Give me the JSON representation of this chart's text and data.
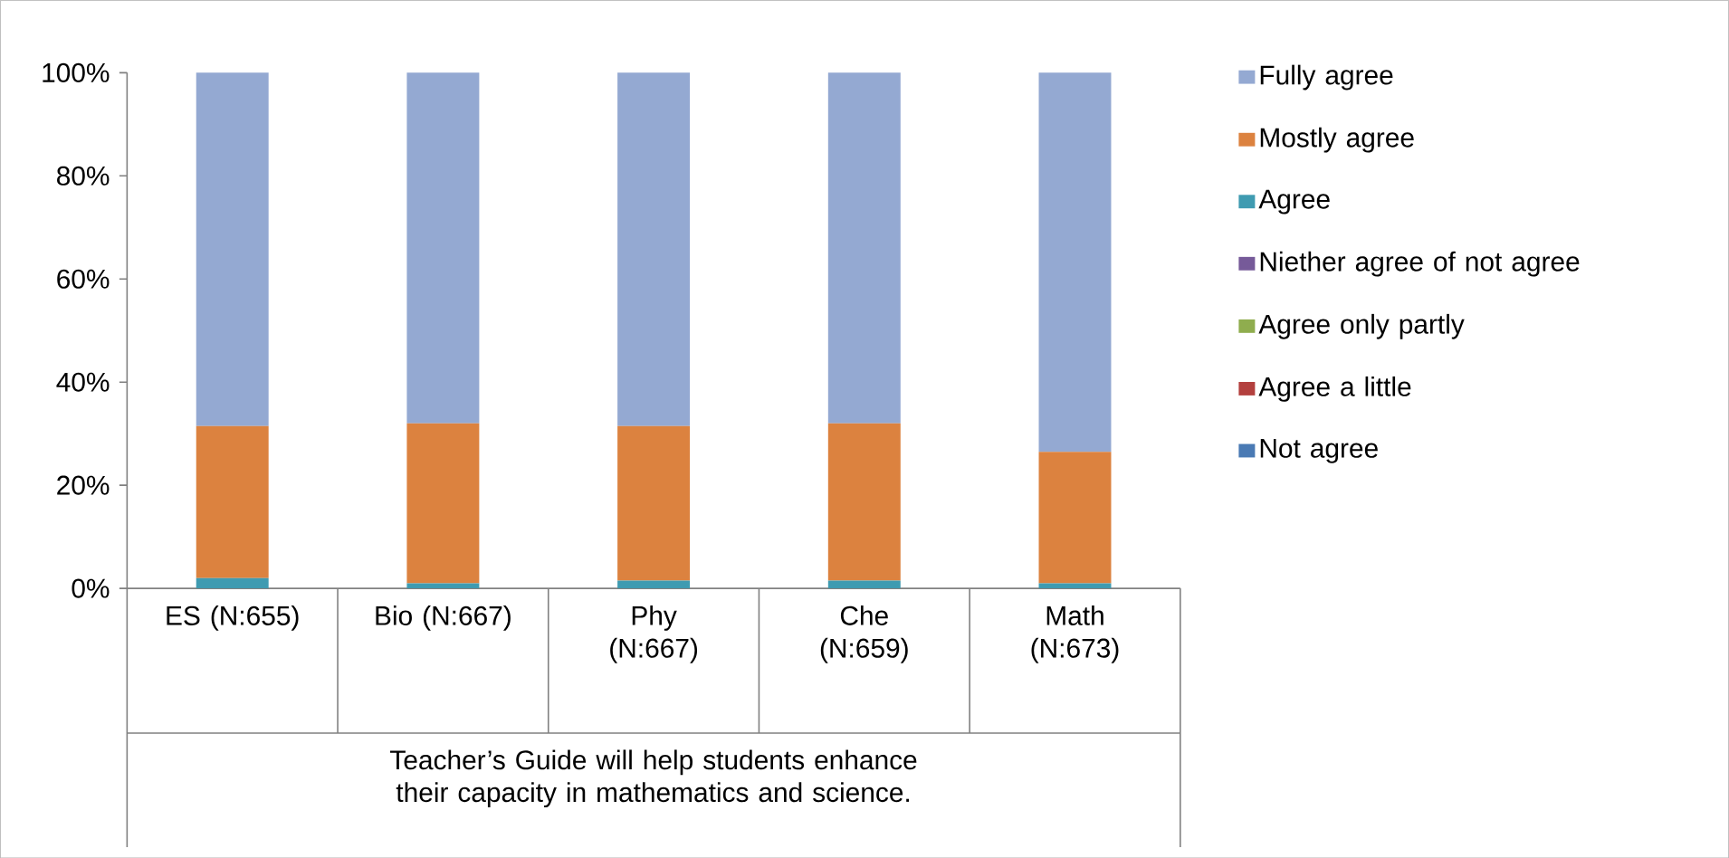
{
  "chart_data": {
    "type": "bar",
    "stacked": true,
    "categories": [
      "ES (N:655)",
      "Bio (N:667)",
      "Phy (N:667)",
      "Che (N:659)",
      "Math (N:673)"
    ],
    "xlabel": "Teacher’s Guide will help students enhance their capacity in mathematics and science.",
    "series": [
      {
        "name": "Not agree",
        "color": "#4a7ab4",
        "values": [
          0,
          0,
          0,
          0,
          0
        ]
      },
      {
        "name": "Agree a little",
        "color": "#b3403e",
        "values": [
          0,
          0,
          0,
          0,
          0
        ]
      },
      {
        "name": "Agree only partly",
        "color": "#8fad4e",
        "values": [
          0,
          0,
          0,
          0,
          0
        ]
      },
      {
        "name": "Niether agree of not agree",
        "color": "#765a99",
        "values": [
          0,
          0,
          0,
          0,
          0
        ]
      },
      {
        "name": "Agree",
        "color": "#3f9bb1",
        "values": [
          2,
          1,
          1.5,
          1.5,
          1
        ]
      },
      {
        "name": "Mostly agree",
        "color": "#dc823f",
        "values": [
          29.5,
          31,
          30,
          30.5,
          25.5
        ]
      },
      {
        "name": "Fully agree",
        "color": "#94a9d2",
        "values": [
          68.5,
          68,
          68.5,
          68,
          73.5
        ]
      }
    ],
    "ylim": [
      0,
      100
    ],
    "yticks": [
      {
        "value": 0,
        "label": "0%"
      },
      {
        "value": 20,
        "label": "20%"
      },
      {
        "value": 40,
        "label": "40%"
      },
      {
        "value": 60,
        "label": "60%"
      },
      {
        "value": 80,
        "label": "80%"
      },
      {
        "value": 100,
        "label": "100%"
      }
    ],
    "legend": "right"
  }
}
